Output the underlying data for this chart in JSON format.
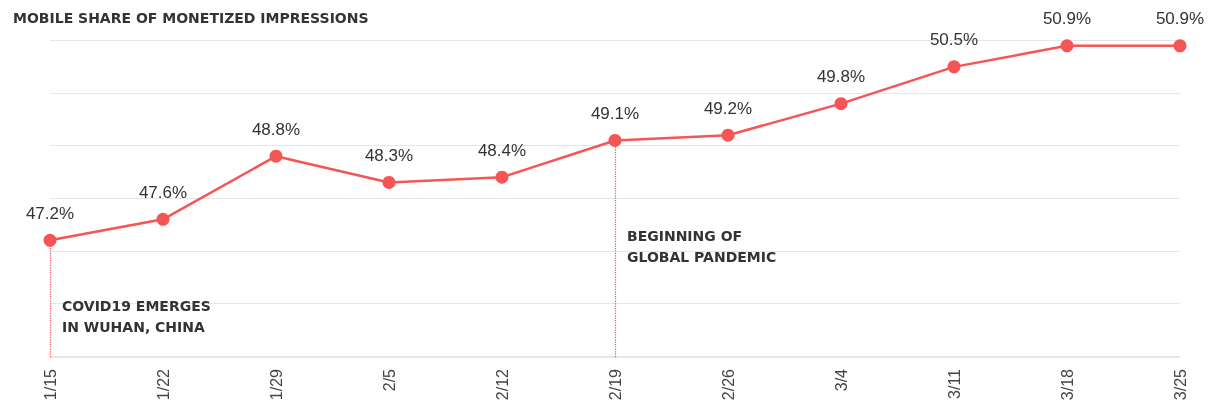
{
  "chart_data": {
    "type": "line",
    "title": "MOBILE SHARE OF MONETIZED IMPRESSIONS",
    "categories": [
      "1/15",
      "1/22",
      "1/29",
      "2/5",
      "2/12",
      "2/19",
      "2/26",
      "3/4",
      "3/11",
      "3/18",
      "3/25"
    ],
    "series": [
      {
        "color": "#f55555",
        "values": [
          47.2,
          47.6,
          48.8,
          48.3,
          48.4,
          49.1,
          49.2,
          49.8,
          50.5,
          50.9,
          50.9
        ],
        "value_labels": [
          "47.2%",
          "47.6%",
          "48.8%",
          "48.3%",
          "48.4%",
          "49.1%",
          "49.2%",
          "49.8%",
          "50.5%",
          "50.9%",
          "50.9%"
        ]
      }
    ],
    "grid": "y",
    "marker": "circle",
    "line_style": "solid",
    "tick_labels": "x",
    "ref_lines": [
      {
        "axis": "x",
        "value": "1/15",
        "label": "COVID19 EMERGES\nIN WUHAN, CHINA",
        "color": "#f55555",
        "line_style": "dotted"
      },
      {
        "axis": "x",
        "value": "2/19",
        "label": "BEGINNING OF\nGLOBAL PANDEMIC",
        "color": "#f55555",
        "line_style": "dotted"
      }
    ]
  }
}
